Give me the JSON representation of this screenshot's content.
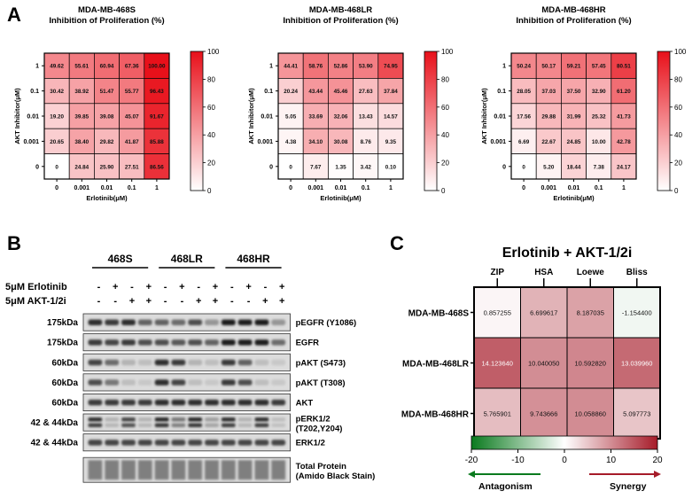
{
  "panels": {
    "a": "A",
    "b": "B",
    "c": "C"
  },
  "colors": {
    "heat_high": "#e8101a",
    "heat_low": "#ffffff",
    "synergy": "#a61b29",
    "antagonism": "#0a7a1e",
    "band_dark": "#222222"
  },
  "chart_data": [
    {
      "type": "heatmap",
      "title": "MDA-MB-468S",
      "subtitle": "Inhibition of Proliferation  (%)",
      "xlabel": "Erlotinib(μM)",
      "ylabel": "AKT Inhibitor(μM)",
      "x_categories": [
        "0",
        "0.001",
        "0.01",
        "0.1",
        "1"
      ],
      "y_categories": [
        "1",
        "0.1",
        "0.01",
        "0.001",
        "0"
      ],
      "values": [
        [
          "49.62",
          "55.61",
          "60.94",
          "67.36",
          "100.00"
        ],
        [
          "30.42",
          "38.92",
          "51.47",
          "55.77",
          "96.43"
        ],
        [
          "19.20",
          "39.85",
          "39.08",
          "45.07",
          "91.67"
        ],
        [
          "20.65",
          "38.40",
          "29.82",
          "41.87",
          "85.88"
        ],
        [
          "0",
          "24.84",
          "25.90",
          "27.51",
          "86.56"
        ]
      ],
      "colorbar_ticks": [
        "100",
        "80",
        "60",
        "40",
        "20",
        "0"
      ],
      "range": [
        0,
        100
      ]
    },
    {
      "type": "heatmap",
      "title": "MDA-MB-468LR",
      "subtitle": "Inhibition of Proliferation  (%)",
      "xlabel": "Erlotinib(μM)",
      "ylabel": "AKT Inhibitor(μM)",
      "x_categories": [
        "0",
        "0.001",
        "0.01",
        "0.1",
        "1"
      ],
      "y_categories": [
        "1",
        "0.1",
        "0.01",
        "0.001",
        "0"
      ],
      "values": [
        [
          "44.41",
          "58.76",
          "52.86",
          "53.90",
          "74.95"
        ],
        [
          "20.24",
          "43.44",
          "45.46",
          "27.63",
          "37.84"
        ],
        [
          "5.05",
          "33.69",
          "32.06",
          "13.43",
          "14.57"
        ],
        [
          "4.38",
          "34.10",
          "30.08",
          "8.76",
          "9.35"
        ],
        [
          "0",
          "7.67",
          "1.35",
          "3.42",
          "0.10"
        ]
      ],
      "colorbar_ticks": [
        "100",
        "80",
        "60",
        "40",
        "20",
        "0"
      ],
      "range": [
        0,
        100
      ]
    },
    {
      "type": "heatmap",
      "title": "MDA-MB-468HR",
      "subtitle": "Inhibition of Proliferation  (%)",
      "xlabel": "Erlotinib(μM)",
      "ylabel": "AKT Inhibitor(μM)",
      "x_categories": [
        "0",
        "0.001",
        "0.01",
        "0.1",
        "1"
      ],
      "y_categories": [
        "1",
        "0.1",
        "0.01",
        "0.001",
        "0"
      ],
      "values": [
        [
          "50.24",
          "50.17",
          "59.21",
          "57.45",
          "80.51"
        ],
        [
          "28.05",
          "37.03",
          "37.50",
          "32.90",
          "61.20"
        ],
        [
          "17.56",
          "29.88",
          "31.99",
          "25.32",
          "41.73"
        ],
        [
          "6.69",
          "22.67",
          "24.85",
          "10.00",
          "42.78"
        ],
        [
          "0",
          "5.20",
          "18.44",
          "7.38",
          "24.17"
        ]
      ],
      "colorbar_ticks": [
        "100",
        "80",
        "60",
        "40",
        "20",
        "0"
      ],
      "range": [
        0,
        100
      ]
    },
    {
      "type": "heatmap",
      "title": "Erlotinib + AKT-1/2i",
      "x_categories": [
        "ZIP",
        "HSA",
        "Loewe",
        "Bliss"
      ],
      "y_categories": [
        "MDA-MB-468S",
        "MDA-MB-468LR",
        "MDA-MB-468HR"
      ],
      "values": [
        [
          "0.857255",
          "6.699617",
          "8.187035",
          "-1.154400"
        ],
        [
          "14.123640",
          "10.040050",
          "10.592820",
          "13.039960"
        ],
        [
          "5.765901",
          "9.743666",
          "10.058860",
          "5.097773"
        ]
      ],
      "colorbar_ticks": [
        "-20",
        "-10",
        "0",
        "10",
        "20"
      ],
      "range": [
        -20,
        20
      ],
      "antagonism_label": "Antagonism",
      "synergy_label": "Synergy"
    }
  ],
  "blot": {
    "groups": [
      "468S",
      "468LR",
      "468HR"
    ],
    "treatments": [
      {
        "label": "5μM Erlotinib",
        "signs": [
          "-",
          "+",
          "-",
          "+",
          "-",
          "+",
          "-",
          "+",
          "-",
          "+",
          "-",
          "+"
        ]
      },
      {
        "label": "5μM AKT-1/2i",
        "signs": [
          "-",
          "-",
          "+",
          "+",
          "-",
          "-",
          "+",
          "+",
          "-",
          "-",
          "+",
          "+"
        ]
      }
    ],
    "rows": [
      {
        "kda": "175kDa",
        "label": "pEGFR (Y1086)",
        "intensity": [
          0.85,
          0.8,
          0.85,
          0.6,
          0.6,
          0.55,
          0.7,
          0.35,
          0.95,
          0.95,
          0.95,
          0.35
        ]
      },
      {
        "kda": "175kDa",
        "label": "EGFR",
        "intensity": [
          0.8,
          0.75,
          0.8,
          0.7,
          0.7,
          0.65,
          0.7,
          0.6,
          0.95,
          0.95,
          0.95,
          0.55
        ]
      },
      {
        "kda": "60kDa",
        "label": "pAKT (S473)",
        "intensity": [
          0.75,
          0.55,
          0.2,
          0.15,
          0.85,
          0.8,
          0.2,
          0.15,
          0.8,
          0.6,
          0.15,
          0.1
        ]
      },
      {
        "kda": "60kDa",
        "label": "pAKT (T308)",
        "intensity": [
          0.7,
          0.5,
          0.15,
          0.1,
          0.85,
          0.75,
          0.15,
          0.1,
          0.8,
          0.7,
          0.15,
          0.1
        ]
      },
      {
        "kda": "60kDa",
        "label": "AKT",
        "intensity": [
          0.8,
          0.8,
          0.8,
          0.8,
          0.85,
          0.85,
          0.85,
          0.85,
          0.85,
          0.85,
          0.85,
          0.8
        ]
      },
      {
        "kda": "42 & 44kDa",
        "label": "pERK1/2",
        "label2": "(T202,Y204)",
        "intensity": [
          0.85,
          0.2,
          0.75,
          0.2,
          0.9,
          0.5,
          0.9,
          0.3,
          0.85,
          0.2,
          0.85,
          0.15
        ],
        "double": true
      },
      {
        "kda": "42 & 44kDa",
        "label": "ERK1/2",
        "intensity": [
          0.75,
          0.75,
          0.75,
          0.75,
          0.75,
          0.75,
          0.75,
          0.75,
          0.75,
          0.75,
          0.75,
          0.75
        ]
      },
      {
        "kda": "",
        "label": "Total Protein",
        "label2": "(Amido Black Stain)",
        "intensity": [
          0.5,
          0.5,
          0.5,
          0.5,
          0.5,
          0.5,
          0.5,
          0.5,
          0.5,
          0.5,
          0.5,
          0.5
        ],
        "smear": true
      }
    ]
  }
}
